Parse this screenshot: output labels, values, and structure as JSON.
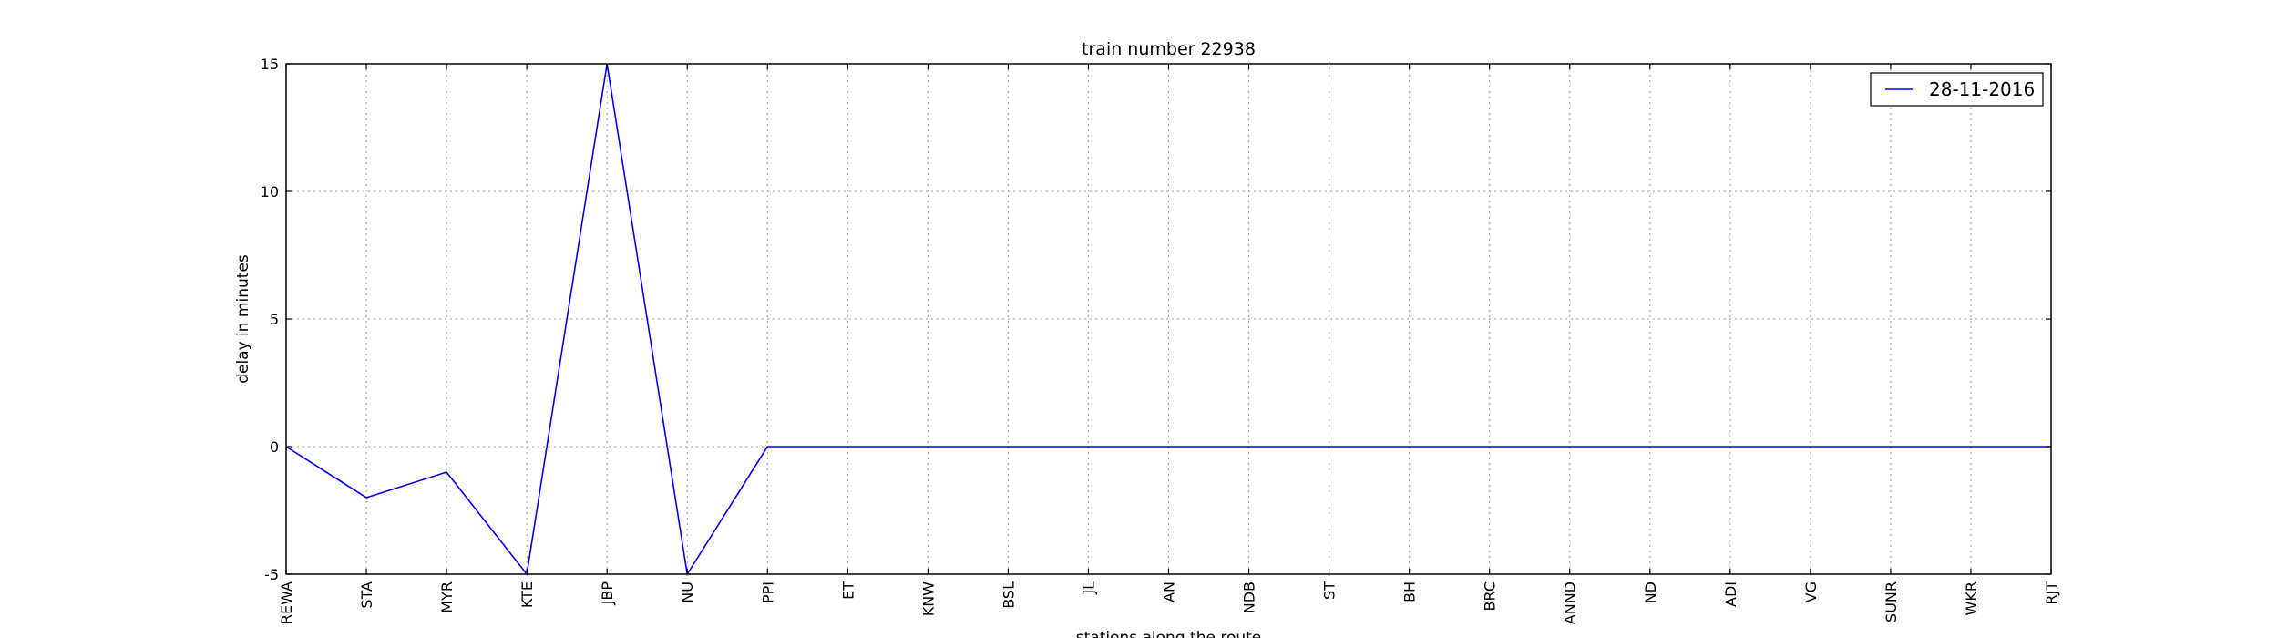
{
  "chart_data": {
    "type": "line",
    "title": "train number 22938",
    "xlabel": "stations along the route",
    "ylabel": "delay in minutes",
    "categories": [
      "REWA",
      "STA",
      "MYR",
      "KTE",
      "JBP",
      "NU",
      "PPI",
      "ET",
      "KNW",
      "BSL",
      "JL",
      "AN",
      "NDB",
      "ST",
      "BH",
      "BRC",
      "ANND",
      "ND",
      "ADI",
      "VG",
      "SUNR",
      "WKR",
      "RJT"
    ],
    "ylim": [
      -5,
      15
    ],
    "yticks": [
      -5,
      0,
      5,
      10,
      15
    ],
    "grid": true,
    "legend_position": "top-right",
    "series": [
      {
        "name": "28-11-2016",
        "color": "#0000ff",
        "values": [
          0,
          -2,
          -1,
          -5,
          15,
          -5,
          0,
          0,
          0,
          0,
          0,
          0,
          0,
          0,
          0,
          0,
          0,
          0,
          0,
          0,
          0,
          0,
          0
        ]
      }
    ]
  }
}
